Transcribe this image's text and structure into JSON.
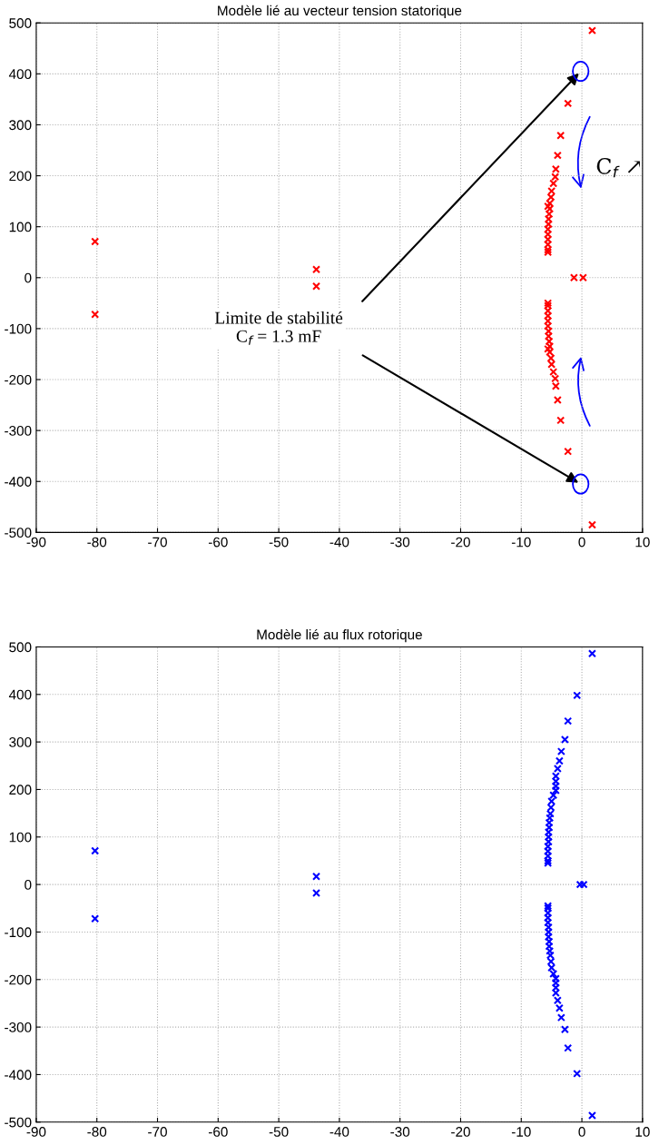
{
  "chart_data": [
    {
      "type": "scatter",
      "title": "Modèle lié au vecteur tension statorique",
      "xlim": [
        -90,
        10
      ],
      "ylim": [
        -500,
        500
      ],
      "xticks": [
        -90,
        -80,
        -70,
        -60,
        -50,
        -40,
        -30,
        -20,
        -10,
        0,
        10
      ],
      "yticks": [
        -500,
        -400,
        -300,
        -200,
        -100,
        0,
        100,
        200,
        300,
        400,
        500
      ],
      "grid": true,
      "marker": "cross",
      "series": [
        {
          "color": "#ff0000",
          "x": [
            -80.3,
            -80.3,
            -43.8,
            -43.8,
            -1.3,
            0.2,
            1.7,
            1.7,
            -2.3,
            -3.5,
            -4.0,
            -4.3,
            -4.4,
            -4.7,
            -5.0,
            -5.1,
            -5.3,
            -5.3,
            -5.4,
            -5.5,
            -5.5,
            -5.6,
            -5.6,
            -5.6,
            -5.6,
            -5.6,
            -5.6,
            -5.6,
            -2.3,
            -3.5,
            -4.0,
            -4.3,
            -4.4,
            -4.7,
            -5.0,
            -5.1,
            -5.3,
            -5.3,
            -5.4,
            -5.5,
            -5.5,
            -5.6,
            -5.6,
            -5.6,
            -5.6,
            -5.6,
            -5.6,
            -5.6
          ],
          "values": [
            71,
            -72,
            16,
            -17,
            0,
            0,
            485,
            -485,
            342,
            279,
            240,
            213,
            198,
            185,
            170,
            158,
            146,
            135,
            125,
            115,
            105,
            95,
            85,
            75,
            65,
            55,
            50,
            140,
            -341,
            -280,
            -240,
            -213,
            -198,
            -185,
            -170,
            -158,
            -146,
            -135,
            -125,
            -115,
            -105,
            -95,
            -85,
            -75,
            -65,
            -55,
            -50,
            -140
          ]
        }
      ],
      "annotations": [
        {
          "text": "Limite de stabilité\nC$_{f}$ = 1.3 mF",
          "x": -0.2,
          "y": 405
        },
        "C$_{f}$ ↗"
      ]
    },
    {
      "type": "scatter",
      "title": "Modèle lié au flux rotorique",
      "xlim": [
        -90,
        10
      ],
      "ylim": [
        -500,
        500
      ],
      "xticks": [
        -90,
        -80,
        -70,
        -60,
        -50,
        -40,
        -30,
        -20,
        -10,
        0,
        10
      ],
      "yticks": [
        -500,
        -400,
        -300,
        -200,
        -100,
        0,
        100,
        200,
        300,
        400,
        500
      ],
      "grid": true,
      "marker": "cross",
      "series": [
        {
          "color": "#0000ff",
          "x": [
            -80.3,
            -80.3,
            -43.8,
            -43.8,
            -0.3,
            0.3,
            1.7,
            -0.8,
            -2.3,
            -2.8,
            -3.4,
            -3.7,
            -4.0,
            -4.3,
            -4.3,
            -4.3,
            -4.3,
            -4.7,
            -5.0,
            -5.1,
            -5.2,
            -5.3,
            -5.4,
            -5.4,
            -5.5,
            -5.5,
            -5.5,
            -5.6,
            -5.6,
            -5.6,
            -5.6,
            -5.6,
            1.7,
            -0.8,
            -2.3,
            -2.8,
            -3.4,
            -3.7,
            -4.0,
            -4.3,
            -4.3,
            -4.3,
            -4.3,
            -4.7,
            -5.0,
            -5.1,
            -5.2,
            -5.3,
            -5.4,
            -5.4,
            -5.5,
            -5.5,
            -5.5,
            -5.6,
            -5.6,
            -5.6,
            -5.6,
            -5.6
          ],
          "values": [
            71,
            -72,
            17,
            -18,
            0,
            0,
            486,
            398,
            344,
            305,
            280,
            260,
            244,
            228,
            217,
            207,
            198,
            188,
            175,
            162,
            149,
            140,
            130,
            120,
            110,
            100,
            90,
            80,
            70,
            60,
            50,
            45,
            -486,
            -398,
            -344,
            -305,
            -280,
            -260,
            -244,
            -228,
            -217,
            -207,
            -198,
            -188,
            -175,
            -162,
            -149,
            -140,
            -130,
            -120,
            -110,
            -100,
            -90,
            -80,
            -70,
            -60,
            -50,
            -45
          ]
        }
      ]
    }
  ]
}
